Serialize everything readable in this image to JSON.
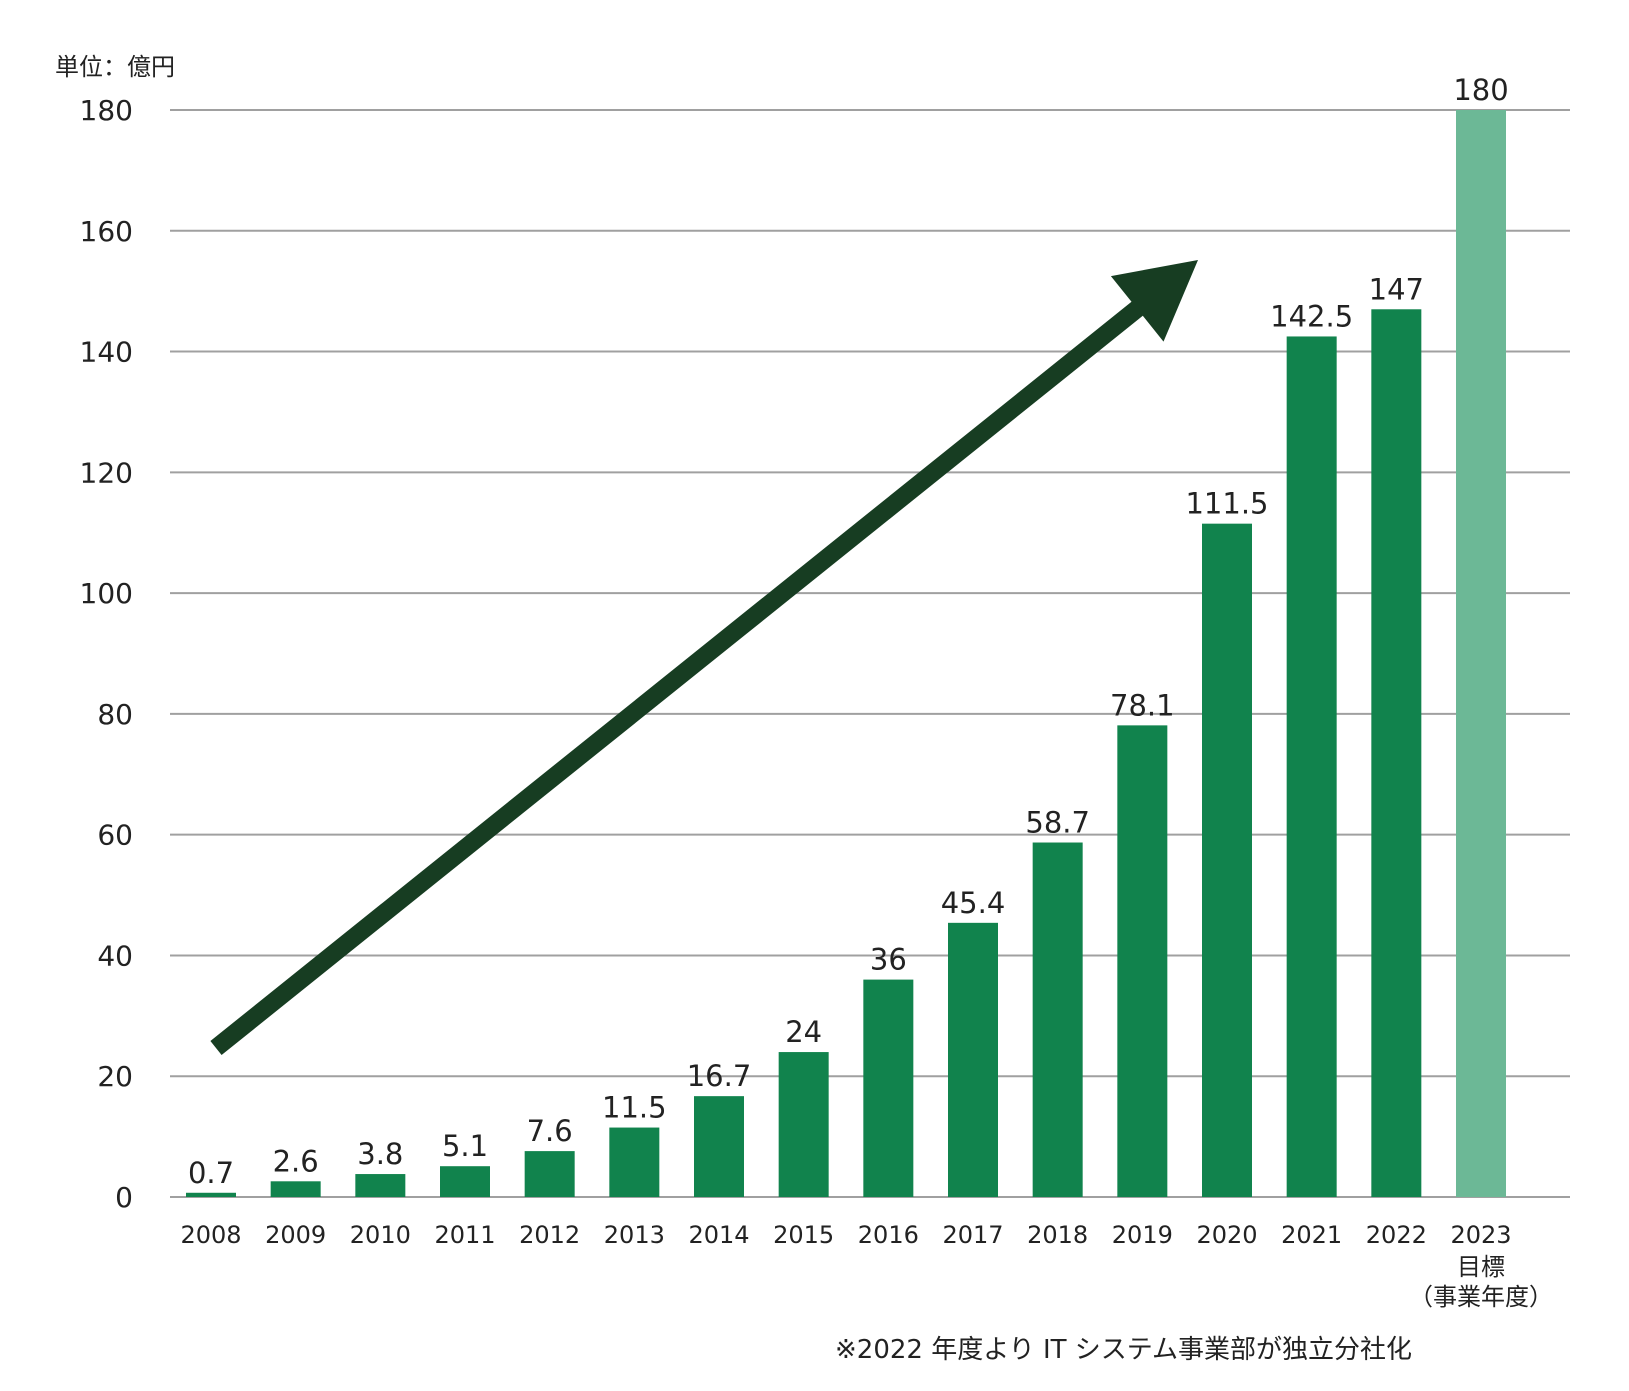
{
  "chart_data": {
    "type": "bar",
    "title": "",
    "unit": "単位：億円",
    "xlabel": "",
    "ylabel": "",
    "ylim": [
      0,
      180
    ],
    "yticks": [
      "0",
      "20",
      "40",
      "60",
      "80",
      "100",
      "120",
      "140",
      "160",
      "180"
    ],
    "grid": true,
    "categories": [
      "2008",
      "2009",
      "2010",
      "2011",
      "2012",
      "2013",
      "2014",
      "2015",
      "2016",
      "2017",
      "2018",
      "2019",
      "2020",
      "2021",
      "2022",
      "2023"
    ],
    "target_category_lines": [
      "目標",
      "（事業年度）"
    ],
    "values": [
      0.7,
      2.6,
      3.8,
      5.1,
      7.6,
      11.5,
      16.7,
      24,
      36,
      45.4,
      58.7,
      78.1,
      111.5,
      142.5,
      147,
      180
    ],
    "value_labels": [
      "0.7",
      "2.6",
      "3.8",
      "5.1",
      "7.6",
      "11.5",
      "16.7",
      "24",
      "36",
      "45.4",
      "58.7",
      "78.1",
      "111.5",
      "142.5",
      "147",
      "180"
    ],
    "bar_colors": {
      "actual": "#11834d",
      "target": "#6cb896"
    },
    "gridline_color": "#a0a0a0",
    "trend_arrow_color": "#173d22",
    "footnote": "※2022 年度より IT システム事業部が独立分社化"
  }
}
